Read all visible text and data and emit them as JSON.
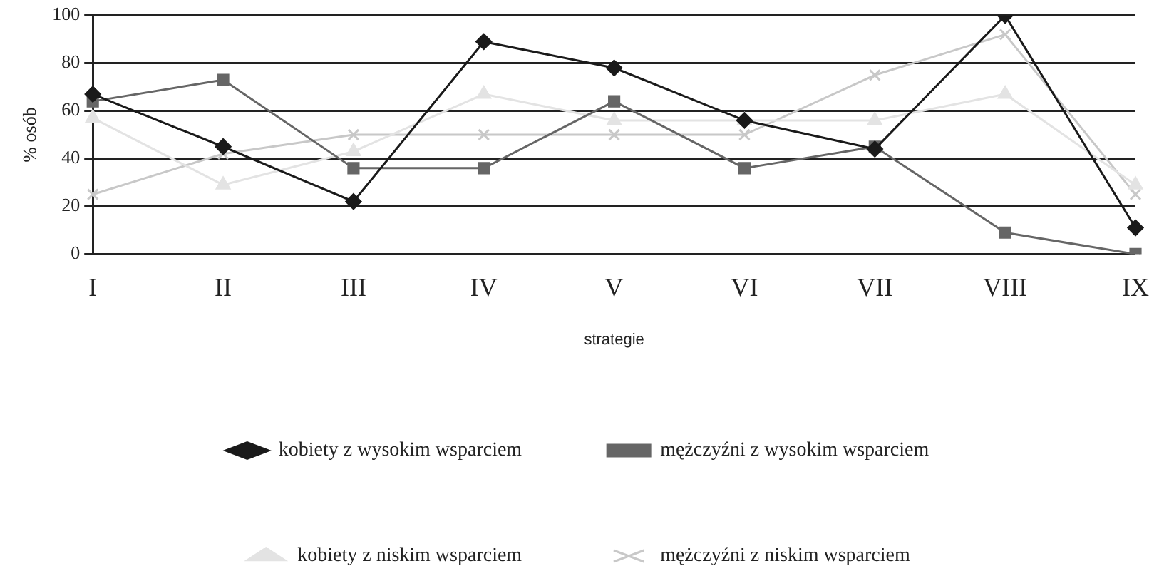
{
  "chart_data": {
    "type": "line",
    "xlabel": "strategie",
    "ylabel": "% osób",
    "categories": [
      "I",
      "II",
      "III",
      "IV",
      "V",
      "VI",
      "VII",
      "VIII",
      "IX"
    ],
    "ylim": [
      0,
      100
    ],
    "yticks": [
      0,
      20,
      40,
      60,
      80,
      100
    ],
    "grid": "y",
    "legend": "bottom",
    "series": [
      {
        "name": "kobiety z wysokim wsparciem",
        "color": "#1a1a1a",
        "marker": "diamond",
        "values": [
          67,
          45,
          22,
          89,
          78,
          56,
          44,
          100,
          11
        ]
      },
      {
        "name": "mężczyźni z wysokim wsparciem",
        "color": "#666666",
        "marker": "square",
        "values": [
          64,
          73,
          36,
          36,
          64,
          36,
          45,
          9,
          0
        ]
      },
      {
        "name": "kobiety z niskim wsparciem",
        "color": "#e3e3e3",
        "marker": "triangle",
        "values": [
          57,
          29,
          43,
          67,
          56,
          56,
          56,
          67,
          29
        ]
      },
      {
        "name": "mężczyźni z niskim wsparciem",
        "color": "#c8c8c8",
        "marker": "cross",
        "values": [
          25,
          42,
          50,
          50,
          50,
          50,
          75,
          92,
          25
        ]
      }
    ]
  }
}
